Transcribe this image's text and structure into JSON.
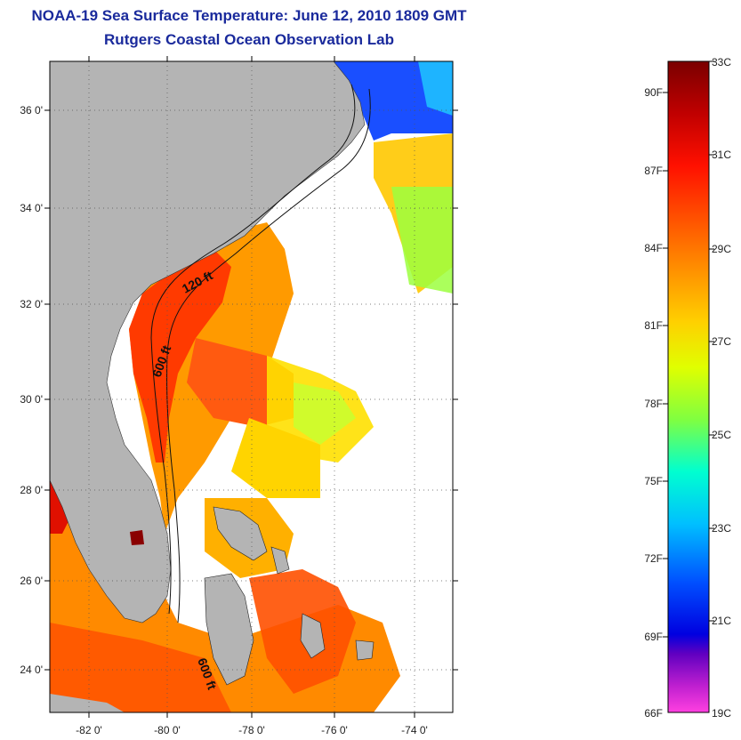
{
  "title_line1": "NOAA-19 Sea Surface Temperature:  June 12, 2010 1809 GMT",
  "title_line2": "Rutgers Coastal Ocean Observation Lab",
  "map": {
    "lat_labels": [
      "36 0'",
      "34 0'",
      "32 0'",
      "30 0'",
      "28 0'",
      "26 0'",
      "24 0'"
    ],
    "lon_labels": [
      "-82 0'",
      "-80 0'",
      "-78 0'",
      "-76 0'",
      "-74 0'"
    ],
    "contour_labels": [
      "120 ft",
      "600 ft",
      "600 ft"
    ]
  },
  "colorbar": {
    "fahrenheit": [
      "90F",
      "87F",
      "84F",
      "81F",
      "78F",
      "75F",
      "72F",
      "69F",
      "66F"
    ],
    "celsius": [
      "33C",
      "31C",
      "29C",
      "27C",
      "25C",
      "23C",
      "21C",
      "19C"
    ],
    "colors": [
      "#800000",
      "#e00000",
      "#ff5000",
      "#ffa000",
      "#ffff00",
      "#80ff40",
      "#00ffe0",
      "#00a0ff",
      "#0010ff",
      "#8000c0",
      "#ff30d0"
    ]
  }
}
